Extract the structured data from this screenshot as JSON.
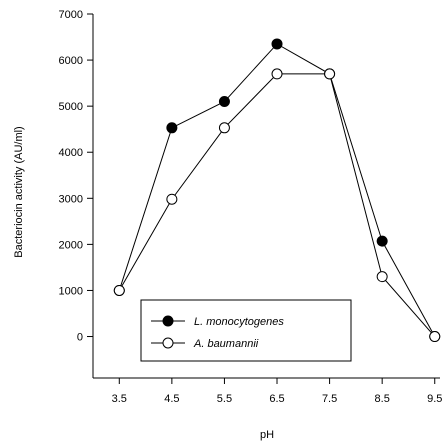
{
  "chart_data": {
    "type": "line",
    "title": "",
    "xlabel": "pH",
    "ylabel": "Bacteriocin activity (AU/ml)",
    "x": [
      3.5,
      4.5,
      5.5,
      6.5,
      7.5,
      8.5,
      9.5
    ],
    "x_tick_labels": [
      "3.5",
      "4.5",
      "5.5",
      "6.5",
      "7.5",
      "8.5",
      "9.5"
    ],
    "y_tick_labels": [
      "0",
      "1000",
      "2000",
      "3000",
      "4000",
      "5000",
      "6000",
      "7000"
    ],
    "xlim": [
      3.0,
      9.6
    ],
    "ylim": [
      -900,
      7000
    ],
    "grid": false,
    "legend_position": "lower-left",
    "series": [
      {
        "name": "L. monocytogenes",
        "marker": "filled-circle",
        "color": "#000000",
        "values": [
          1000,
          4530,
          5100,
          6350,
          5700,
          2070,
          0
        ]
      },
      {
        "name": "A. baumannii",
        "marker": "open-circle",
        "color": "#000000",
        "values": [
          1000,
          2980,
          4530,
          5700,
          5700,
          1300,
          0
        ]
      }
    ]
  }
}
